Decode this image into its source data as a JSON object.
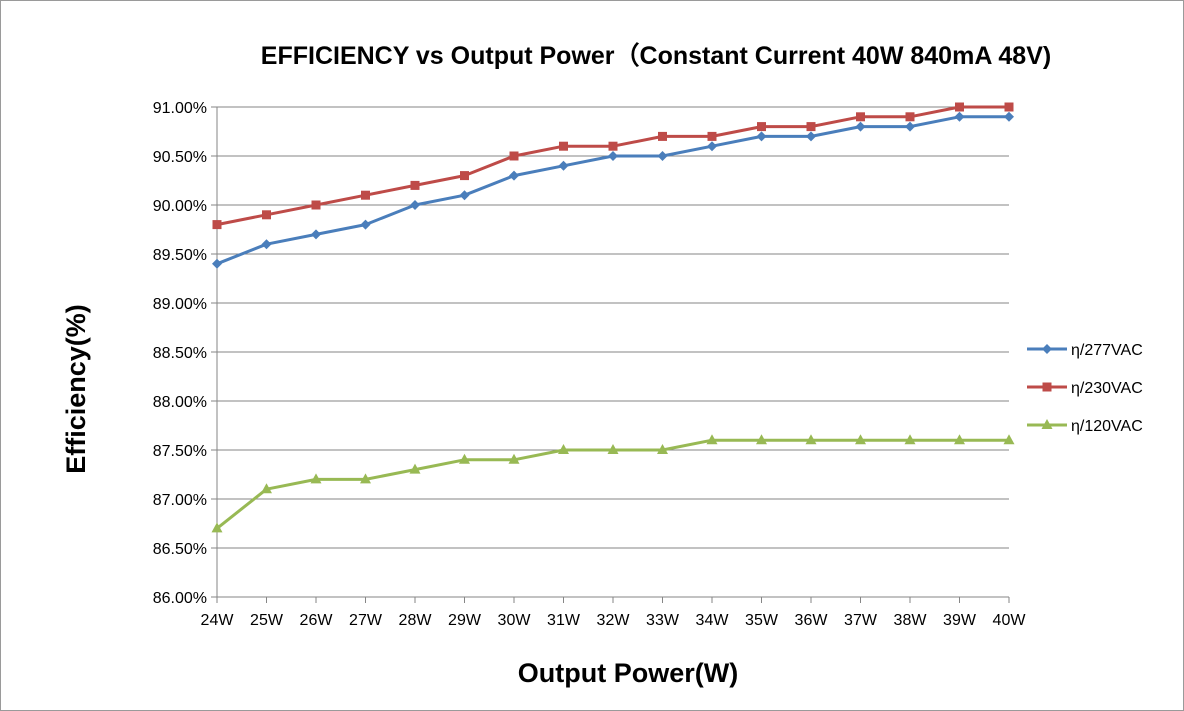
{
  "chart_data": {
    "type": "line",
    "title": "EFFICIENCY vs Output Power（Constant Current 40W 840mA 48V)",
    "xlabel": "Output Power(W)",
    "ylabel": "Efficiency(%)",
    "categories": [
      "24W",
      "25W",
      "26W",
      "27W",
      "28W",
      "29W",
      "30W",
      "31W",
      "32W",
      "33W",
      "34W",
      "35W",
      "36W",
      "37W",
      "38W",
      "39W",
      "40W"
    ],
    "ylim": [
      86.0,
      91.0
    ],
    "ytick_step": 0.5,
    "ytick_labels": [
      "86.00%",
      "86.50%",
      "87.00%",
      "87.50%",
      "88.00%",
      "88.50%",
      "89.00%",
      "89.50%",
      "90.00%",
      "90.50%",
      "91.00%"
    ],
    "grid": true,
    "legend_position": "right",
    "series": [
      {
        "name": "η/277VAC",
        "color": "#4a7ebb",
        "marker": "diamond",
        "values": [
          89.4,
          89.6,
          89.7,
          89.8,
          90.0,
          90.1,
          90.3,
          90.4,
          90.5,
          90.5,
          90.6,
          90.7,
          90.7,
          90.8,
          90.8,
          90.9,
          90.9
        ]
      },
      {
        "name": "η/230VAC",
        "color": "#be4b48",
        "marker": "square",
        "values": [
          89.8,
          89.9,
          90.0,
          90.1,
          90.2,
          90.3,
          90.5,
          90.6,
          90.6,
          90.7,
          90.7,
          90.8,
          90.8,
          90.9,
          90.9,
          91.0,
          91.0
        ]
      },
      {
        "name": "η/120VAC",
        "color": "#98b954",
        "marker": "triangle",
        "values": [
          86.7,
          87.1,
          87.2,
          87.2,
          87.3,
          87.4,
          87.4,
          87.5,
          87.5,
          87.5,
          87.6,
          87.6,
          87.6,
          87.6,
          87.6,
          87.6,
          87.6
        ]
      }
    ]
  }
}
